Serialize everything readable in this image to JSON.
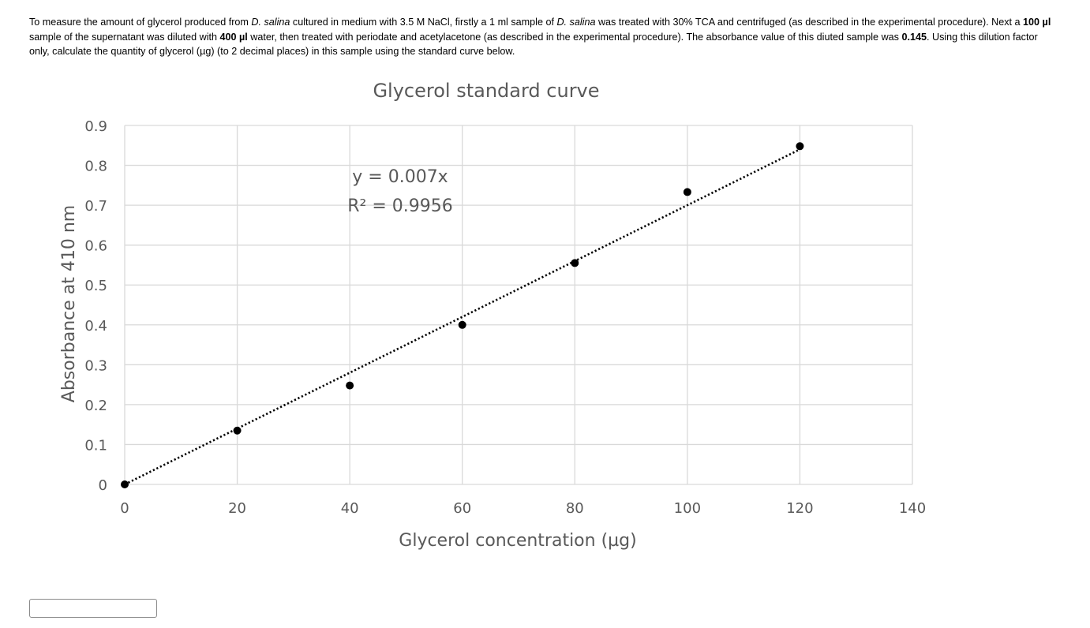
{
  "question": {
    "segments": [
      {
        "text": "To measure the amount of glycerol produced from ",
        "style": "normal"
      },
      {
        "text": "D. salina",
        "style": "italic"
      },
      {
        "text": " cultured in medium with 3.5 M NaCl, firstly a 1 ml sample of ",
        "style": "normal"
      },
      {
        "text": "D. salina",
        "style": "italic"
      },
      {
        "text": " was treated with 30% TCA and centrifuged (as described in the experimental procedure). Next a ",
        "style": "normal"
      },
      {
        "text": "100 µl",
        "style": "bold"
      },
      {
        "text": " sample of the supernatant was diluted with ",
        "style": "normal"
      },
      {
        "text": "400 µl",
        "style": "bold"
      },
      {
        "text": " water, then treated with periodate and acetylacetone (as described in the experimental procedure). The absorbance value of this diuted sample was ",
        "style": "normal"
      },
      {
        "text": "0.145",
        "style": "bold"
      },
      {
        "text": ". Using this dilution factor only, calculate the quantity of glycerol (µg) (to 2 decimal places) in this sample using the standard curve below.",
        "style": "normal"
      }
    ]
  },
  "answer": {
    "value": "",
    "placeholder": ""
  },
  "chart_data": {
    "type": "scatter",
    "title": "Glycerol standard curve",
    "xlabel": "Glycerol concentration (µg)",
    "ylabel": "Absorbance at 410 nm",
    "xlim": [
      0,
      140
    ],
    "ylim": [
      0,
      0.9
    ],
    "x_ticks": [
      "0",
      "20",
      "40",
      "60",
      "80",
      "100",
      "120",
      "140"
    ],
    "y_ticks": [
      "0",
      "0.1",
      "0.2",
      "0.3",
      "0.4",
      "0.5",
      "0.6",
      "0.7",
      "0.8",
      "0.9"
    ],
    "x_tick_values": [
      0,
      20,
      40,
      60,
      80,
      100,
      120,
      140
    ],
    "y_tick_values": [
      0,
      0.1,
      0.2,
      0.3,
      0.4,
      0.5,
      0.6,
      0.7,
      0.8,
      0.9
    ],
    "grid": true,
    "series": [
      {
        "x": [
          0,
          20,
          40,
          60,
          80,
          100,
          120
        ],
        "y": [
          0,
          0.135,
          0.248,
          0.4,
          0.555,
          0.733,
          0.848
        ],
        "color": "#000000"
      }
    ],
    "trendline": {
      "type": "linear",
      "slope": 0.007,
      "intercept": 0,
      "x_range": [
        0,
        120
      ],
      "style": "dotted",
      "color": "#000000",
      "equation_label": "y = 0.007x",
      "r2_label": "R² = 0.9956"
    },
    "colors": {
      "grid": "#d9d9d9",
      "axis_text": "#595959",
      "marker": "#000000"
    }
  }
}
